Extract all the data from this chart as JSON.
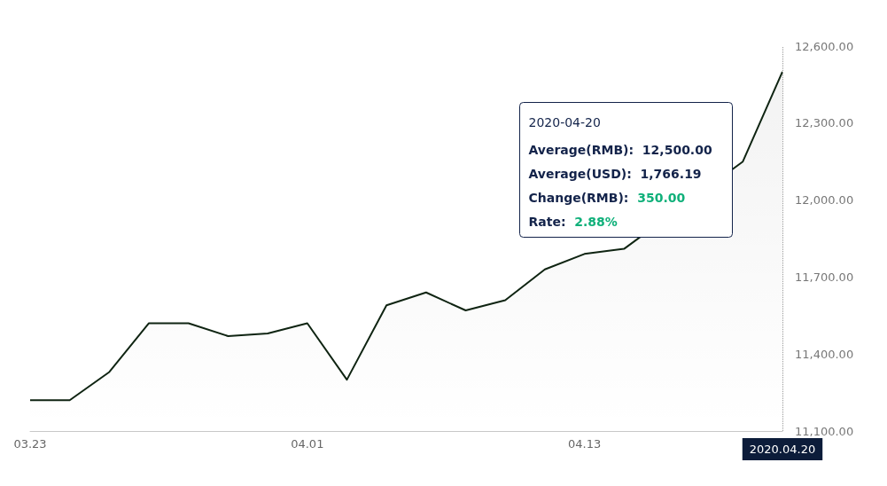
{
  "chart_data": {
    "type": "area",
    "categories": [
      "03.23",
      null,
      null,
      null,
      null,
      null,
      null,
      "04.01",
      null,
      null,
      null,
      null,
      null,
      null,
      "04.13",
      null,
      null,
      null,
      null,
      "2020.04.20"
    ],
    "series": [
      {
        "color": "#0f2412",
        "values": [
          11220,
          11220,
          11330,
          11520,
          11520,
          11470,
          11480,
          11520,
          11300,
          11590,
          11640,
          11570,
          11610,
          11730,
          11790,
          11810,
          null,
          null,
          12150,
          12500
        ]
      }
    ],
    "ylim": [
      11100,
      12600
    ],
    "yticks": [
      {
        "value": 11100,
        "label": "11,100.00"
      },
      {
        "value": 11400,
        "label": "11,400.00"
      },
      {
        "value": 11700,
        "label": "11,700.00"
      },
      {
        "value": 12000,
        "label": "12,000.00"
      },
      {
        "value": 12300,
        "label": "12,300.00"
      },
      {
        "value": 12600,
        "label": "12,600.00"
      }
    ],
    "ref_lines": [
      {
        "axis": "x",
        "value": "2020.04.20",
        "line_style": "dotted",
        "color": "#999999"
      }
    ],
    "annotations": [
      "2020-04-20",
      "Average(RMB):  12,500.00",
      "Average(USD):  1,766.19",
      "Change(RMB):  350.00",
      "Rate:  2.88%"
    ],
    "grid": false,
    "marker": "none"
  }
}
